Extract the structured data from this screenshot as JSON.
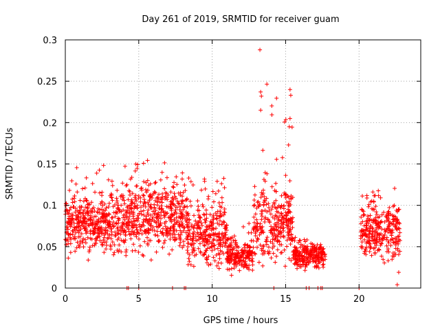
{
  "chart_data": {
    "type": "scatter",
    "title": "Day 261 of 2019, SRMTID for receiver guam",
    "xlabel": "GPS time / hours",
    "ylabel": "SRMTID / TECUs",
    "xlim": [
      0,
      24.2
    ],
    "ylim": [
      0,
      0.3
    ],
    "grid": true,
    "marker": "+",
    "color": "#ff0000",
    "x_ticks": [
      0,
      5,
      10,
      15,
      20
    ],
    "x_tick_labels": [
      "0",
      "5",
      "10",
      "15",
      "20"
    ],
    "y_ticks": [
      0,
      0.05,
      0.1,
      0.15,
      0.2,
      0.25,
      0.3
    ],
    "y_tick_labels": [
      "0",
      "0.05",
      "0.1",
      "0.15",
      "0.2",
      "0.25",
      "0.3"
    ],
    "segments": [
      {
        "x_start": 0.0,
        "x_end": 4.0,
        "baseline": 0.08,
        "spread": 0.035,
        "max": 0.165
      },
      {
        "x_start": 4.0,
        "x_end": 8.3,
        "baseline": 0.085,
        "spread": 0.04,
        "max": 0.17
      },
      {
        "x_start": 8.3,
        "x_end": 11.0,
        "baseline": 0.065,
        "spread": 0.035,
        "max": 0.145
      },
      {
        "x_start": 11.0,
        "x_end": 12.8,
        "baseline": 0.04,
        "spread": 0.02,
        "max": 0.09
      },
      {
        "x_start": 12.8,
        "x_end": 15.5,
        "baseline": 0.075,
        "spread": 0.045,
        "max": 0.288
      },
      {
        "x_start": 15.5,
        "x_end": 17.7,
        "baseline": 0.04,
        "spread": 0.015,
        "max": 0.065
      },
      {
        "x_start": 20.1,
        "x_end": 22.8,
        "baseline": 0.07,
        "spread": 0.03,
        "max": 0.13
      }
    ],
    "peaks": [
      {
        "x": 13.25,
        "y": 0.288
      },
      {
        "x": 13.3,
        "y": 0.237
      },
      {
        "x": 13.35,
        "y": 0.232
      },
      {
        "x": 13.3,
        "y": 0.215
      },
      {
        "x": 15.3,
        "y": 0.24
      },
      {
        "x": 15.35,
        "y": 0.233
      },
      {
        "x": 15.3,
        "y": 0.205
      },
      {
        "x": 15.25,
        "y": 0.195
      },
      {
        "x": 15.2,
        "y": 0.173
      },
      {
        "x": 22.7,
        "y": 0.019
      },
      {
        "x": 22.6,
        "y": 0.004
      }
    ],
    "zero_points": [
      4.2,
      4.3,
      5.0,
      7.3,
      8.1,
      8.2,
      14.2,
      16.4,
      16.6,
      17.2,
      17.4,
      17.5,
      20.0
    ]
  }
}
